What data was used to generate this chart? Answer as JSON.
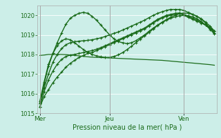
{
  "bg_color": "#cceee8",
  "grid_color": "#ffffff",
  "line_color": "#1a6b1a",
  "xlabel": "Pression niveau de la mer( hPa )",
  "ylim": [
    1015.0,
    1020.5
  ],
  "yticks": [
    1015,
    1016,
    1017,
    1018,
    1019,
    1020
  ],
  "xtick_labels": [
    "Mer",
    "Jeu",
    "Ven"
  ],
  "xtick_pos": [
    0,
    16,
    33
  ],
  "total_points": 41,
  "series": [
    {
      "y": [
        1015.3,
        1015.85,
        1016.2,
        1016.55,
        1016.85,
        1017.1,
        1017.35,
        1017.55,
        1017.7,
        1017.85,
        1017.95,
        1018.05,
        1018.1,
        1018.2,
        1018.3,
        1018.4,
        1018.5,
        1018.6,
        1018.7,
        1018.8,
        1018.9,
        1019.0,
        1019.1,
        1019.2,
        1019.3,
        1019.45,
        1019.6,
        1019.75,
        1019.85,
        1019.95,
        1020.0,
        1020.05,
        1020.1,
        1020.0,
        1019.9,
        1019.8,
        1019.7,
        1019.6,
        1019.5,
        1019.35,
        1019.2
      ],
      "marker": true,
      "lw": 1.0
    },
    {
      "y": [
        1015.3,
        1016.1,
        1016.7,
        1017.15,
        1017.5,
        1017.75,
        1017.9,
        1017.97,
        1018.0,
        1018.05,
        1018.1,
        1018.15,
        1018.2,
        1018.27,
        1018.35,
        1018.45,
        1018.55,
        1018.65,
        1018.75,
        1018.85,
        1018.95,
        1019.05,
        1019.15,
        1019.25,
        1019.35,
        1019.5,
        1019.65,
        1019.8,
        1019.9,
        1020.0,
        1020.05,
        1020.1,
        1020.12,
        1020.05,
        1019.95,
        1019.85,
        1019.75,
        1019.65,
        1019.5,
        1019.35,
        1019.2
      ],
      "marker": true,
      "lw": 1.0
    },
    {
      "y": [
        1017.95,
        1017.97,
        1018.0,
        1018.0,
        1018.0,
        1018.0,
        1017.99,
        1017.97,
        1017.95,
        1017.93,
        1017.9,
        1017.88,
        1017.86,
        1017.85,
        1017.84,
        1017.83,
        1017.82,
        1017.81,
        1017.8,
        1017.79,
        1017.78,
        1017.77,
        1017.76,
        1017.75,
        1017.74,
        1017.73,
        1017.72,
        1017.71,
        1017.7,
        1017.68,
        1017.66,
        1017.64,
        1017.62,
        1017.6,
        1017.58,
        1017.56,
        1017.54,
        1017.52,
        1017.5,
        1017.48,
        1017.45
      ],
      "marker": false,
      "lw": 0.9
    },
    {
      "y": [
        1015.5,
        1016.3,
        1017.0,
        1017.6,
        1018.0,
        1018.3,
        1018.5,
        1018.6,
        1018.65,
        1018.68,
        1018.7,
        1018.72,
        1018.75,
        1018.8,
        1018.85,
        1018.92,
        1019.0,
        1019.08,
        1019.15,
        1019.25,
        1019.35,
        1019.45,
        1019.55,
        1019.65,
        1019.75,
        1019.88,
        1020.0,
        1020.1,
        1020.18,
        1020.25,
        1020.3,
        1020.3,
        1020.3,
        1020.25,
        1020.15,
        1020.05,
        1019.95,
        1019.82,
        1019.65,
        1019.45,
        1019.2
      ],
      "marker": true,
      "lw": 1.0
    },
    {
      "y": [
        1015.5,
        1016.5,
        1017.4,
        1018.05,
        1018.6,
        1019.1,
        1019.55,
        1019.85,
        1020.0,
        1020.1,
        1020.15,
        1020.1,
        1019.95,
        1019.75,
        1019.5,
        1019.25,
        1019.0,
        1018.8,
        1018.65,
        1018.6,
        1018.55,
        1018.6,
        1018.7,
        1018.85,
        1019.0,
        1019.18,
        1019.35,
        1019.5,
        1019.65,
        1019.78,
        1019.9,
        1020.0,
        1020.08,
        1020.12,
        1020.1,
        1020.05,
        1019.95,
        1019.8,
        1019.6,
        1019.35,
        1019.1
      ],
      "marker": true,
      "lw": 1.0
    },
    {
      "y": [
        1015.6,
        1016.6,
        1017.5,
        1018.05,
        1018.45,
        1018.7,
        1018.8,
        1018.75,
        1018.6,
        1018.42,
        1018.25,
        1018.1,
        1018.0,
        1017.93,
        1017.88,
        1017.85,
        1017.85,
        1017.9,
        1017.98,
        1018.1,
        1018.25,
        1018.42,
        1018.6,
        1018.78,
        1018.95,
        1019.12,
        1019.3,
        1019.48,
        1019.62,
        1019.75,
        1019.85,
        1019.92,
        1019.98,
        1020.0,
        1019.98,
        1019.92,
        1019.82,
        1019.68,
        1019.5,
        1019.28,
        1019.05
      ],
      "marker": true,
      "lw": 1.0
    }
  ]
}
